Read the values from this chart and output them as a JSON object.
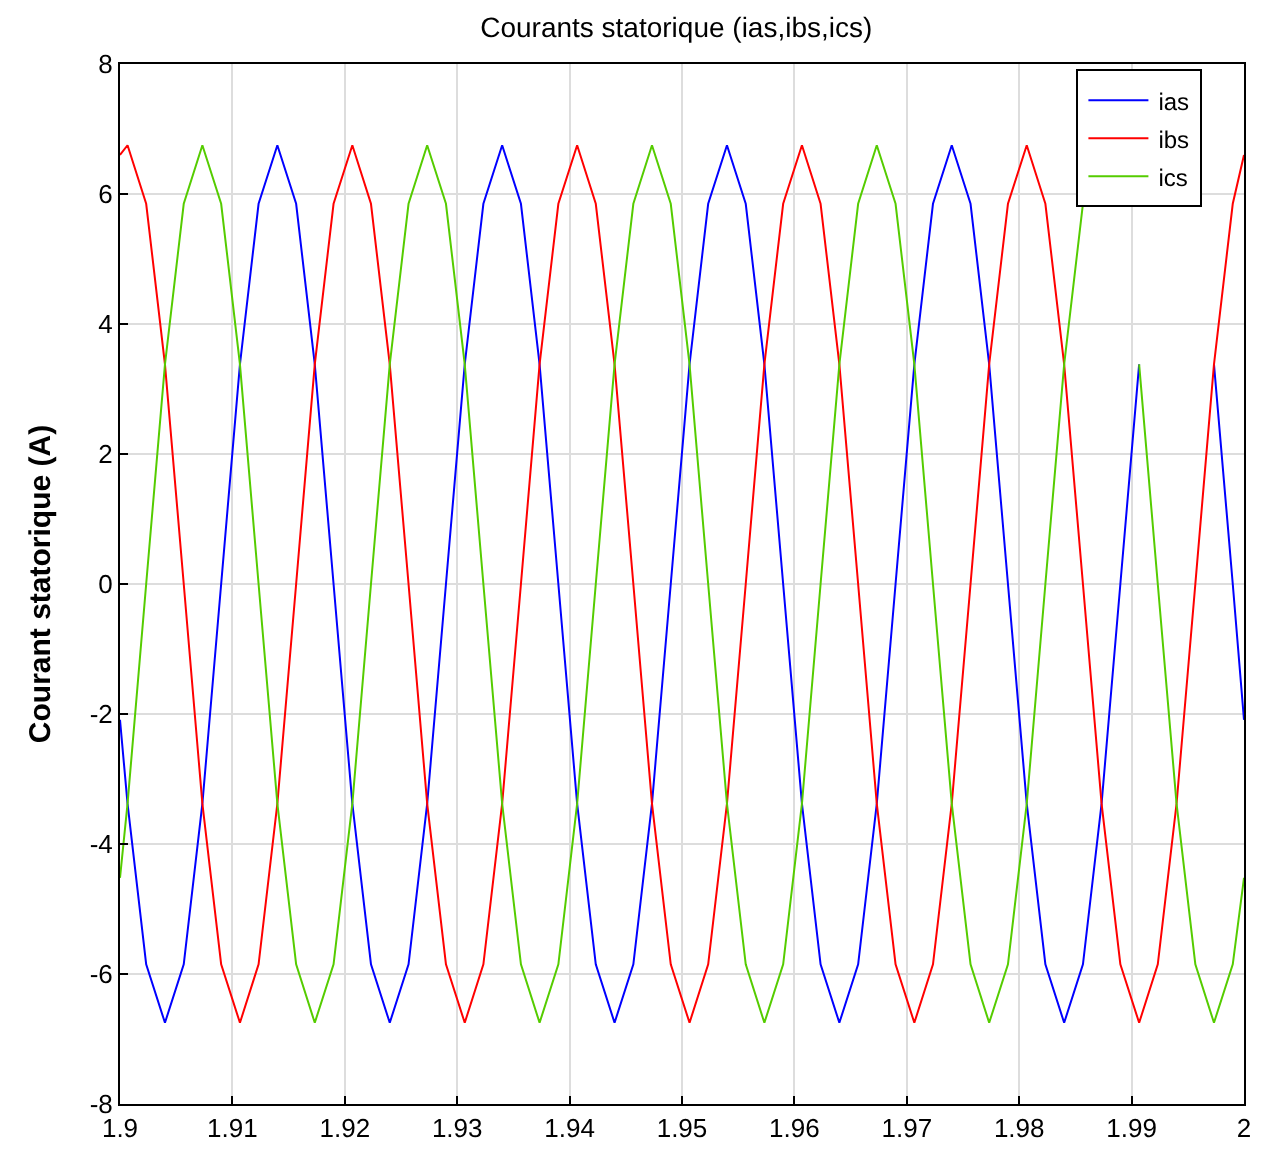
{
  "chart_data": {
    "type": "line",
    "title": "Courants statorique (ias,ibs,ics)",
    "ylabel": "Courant statorique (A)",
    "x": [
      1.9,
      1.90067,
      1.90233,
      1.904,
      1.90567,
      1.90733,
      1.909,
      1.91067,
      1.91233,
      1.914,
      1.91567,
      1.91733,
      1.919,
      1.92067,
      1.92233,
      1.924,
      1.92567,
      1.92733,
      1.929,
      1.93067,
      1.93233,
      1.934,
      1.93567,
      1.93733,
      1.939,
      1.94067,
      1.94233,
      1.944,
      1.94567,
      1.94733,
      1.949,
      1.95067,
      1.95233,
      1.954,
      1.95567,
      1.95733,
      1.959,
      1.96067,
      1.96233,
      1.964,
      1.96567,
      1.96733,
      1.969,
      1.97067,
      1.97233,
      1.974,
      1.97567,
      1.97733,
      1.979,
      1.98067,
      1.98233,
      1.984,
      1.98567,
      1.98733,
      1.989,
      1.99067,
      1.99233,
      1.994,
      1.99567,
      1.99733,
      1.999,
      2.0
    ],
    "series": [
      {
        "name": "ias",
        "color": "#0000ff",
        "values": [
          -2.09,
          -3.38,
          -5.85,
          -6.75,
          -5.85,
          -3.38,
          0,
          3.38,
          5.85,
          6.75,
          5.85,
          3.38,
          0,
          -3.38,
          -5.85,
          -6.75,
          -5.85,
          -3.38,
          0,
          3.38,
          5.85,
          6.75,
          5.85,
          3.38,
          0,
          -3.38,
          -5.85,
          -6.75,
          -5.85,
          -3.38,
          0,
          3.38,
          5.85,
          6.75,
          5.85,
          3.38,
          0,
          -3.38,
          -5.85,
          -6.75,
          -5.85,
          -3.38,
          0,
          3.38,
          5.85,
          6.75,
          5.85,
          3.38,
          0,
          -3.38,
          -5.85,
          -6.75,
          -5.85,
          -3.38,
          0,
          3.38,
          null,
          null,
          null,
          3.38,
          0,
          -2.09
        ]
      },
      {
        "name": "ibs",
        "color": "#ff0000",
        "values": [
          6.6,
          6.75,
          5.85,
          3.38,
          0,
          -3.38,
          -5.85,
          -6.75,
          -5.85,
          -3.38,
          0,
          3.38,
          5.85,
          6.75,
          5.85,
          3.38,
          0,
          -3.38,
          -5.85,
          -6.75,
          -5.85,
          -3.38,
          0,
          3.38,
          5.85,
          6.75,
          5.85,
          3.38,
          0,
          -3.38,
          -5.85,
          -6.75,
          -5.85,
          -3.38,
          0,
          3.38,
          5.85,
          6.75,
          5.85,
          3.38,
          0,
          -3.38,
          -5.85,
          -6.75,
          -5.85,
          -3.38,
          0,
          3.38,
          5.85,
          6.75,
          5.85,
          3.38,
          0,
          -3.38,
          -5.85,
          -6.75,
          -5.85,
          -3.38,
          0,
          3.38,
          5.85,
          6.6
        ]
      },
      {
        "name": "ics",
        "color": "#55cc00",
        "values": [
          -4.52,
          -3.38,
          0,
          3.38,
          5.85,
          6.75,
          5.85,
          3.38,
          0,
          -3.38,
          -5.85,
          -6.75,
          -5.85,
          -3.38,
          0,
          3.38,
          5.85,
          6.75,
          5.85,
          3.38,
          0,
          -3.38,
          -5.85,
          -6.75,
          -5.85,
          -3.38,
          0,
          3.38,
          5.85,
          6.75,
          5.85,
          3.38,
          0,
          -3.38,
          -5.85,
          -6.75,
          -5.85,
          -3.38,
          0,
          3.38,
          5.85,
          6.75,
          5.85,
          3.38,
          0,
          -3.38,
          -5.85,
          -6.75,
          -5.85,
          -3.38,
          0,
          3.38,
          5.85,
          null,
          null,
          3.38,
          0,
          -3.38,
          -5.85,
          -6.75,
          -5.85,
          -4.52
        ]
      }
    ],
    "xlim": [
      1.9,
      2.0
    ],
    "xticks": [
      1.9,
      1.91,
      1.92,
      1.93,
      1.94,
      1.95,
      1.96,
      1.97,
      1.98,
      1.99,
      2
    ],
    "ylim": [
      -8,
      8
    ],
    "yticks": [
      -8,
      -6,
      -4,
      -2,
      0,
      2,
      4,
      6,
      8
    ],
    "grid": true,
    "legend": "top right",
    "marker": "none",
    "line_style": "solid"
  }
}
